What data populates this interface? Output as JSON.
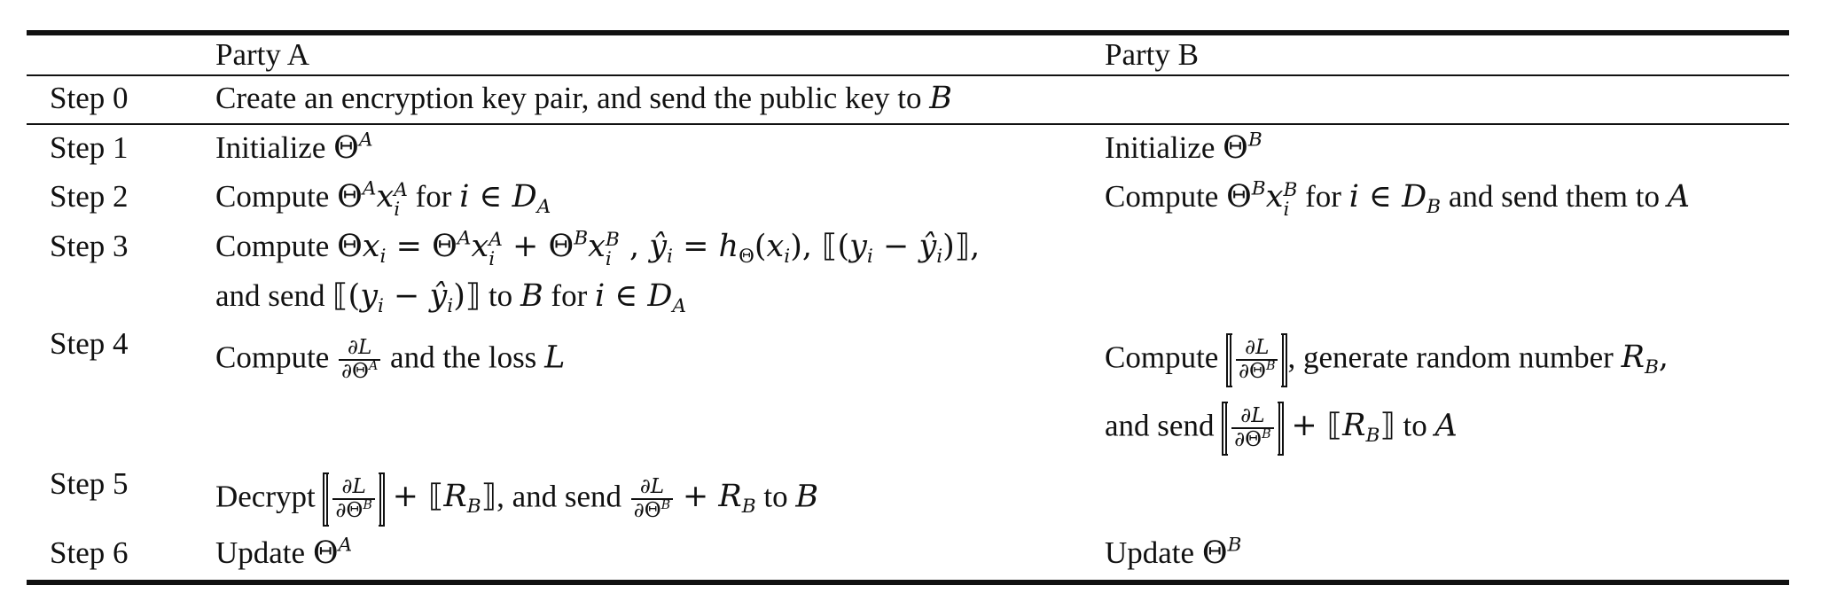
{
  "header": {
    "col_a": "Party A",
    "col_b": "Party B"
  },
  "rows": [
    {
      "step": "Step 0",
      "a_text": "Create an encryption key pair, and send the public key to",
      "a_party": "B"
    },
    {
      "step": "Step 1",
      "a_text": "Initialize",
      "b_text": "Initialize"
    },
    {
      "step": "Step 2",
      "a_text": "Compute",
      "a_for": "for",
      "b_text": "Compute",
      "b_for": "for",
      "b_send": "and send them to",
      "b_party": "A"
    },
    {
      "step": "Step 3",
      "a_text": "Compute",
      "a_line2_pre": "and send",
      "a_line2_to": "to",
      "a_line2_party": "B",
      "a_line2_for": "for"
    },
    {
      "step": "Step 4",
      "a_text": "Compute",
      "a_loss_text": "and the loss",
      "a_loss_var": "L",
      "b_text": "Compute",
      "b_gen": ", generate random number",
      "b_line2_pre": "and send",
      "b_line2_to": "to",
      "b_line2_party": "A"
    },
    {
      "step": "Step 5",
      "a_text": "Decrypt",
      "a_send": ", and send",
      "a_to": "to",
      "a_party": "B"
    },
    {
      "step": "Step 6",
      "a_text": "Update",
      "b_text": "Update"
    }
  ]
}
